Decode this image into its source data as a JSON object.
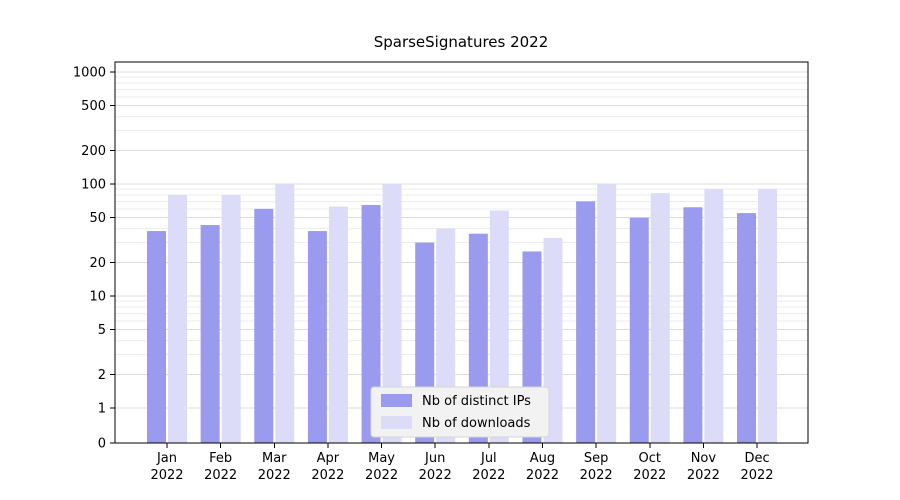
{
  "chart_data": {
    "type": "bar",
    "title": "SparseSignatures 2022",
    "categories": [
      "Jan",
      "Feb",
      "Mar",
      "Apr",
      "May",
      "Jun",
      "Jul",
      "Aug",
      "Sep",
      "Oct",
      "Nov",
      "Dec"
    ],
    "year": "2022",
    "series": [
      {
        "name": "Nb of distinct IPs",
        "color": "#9a9aee",
        "values": [
          38,
          43,
          60,
          38,
          65,
          30,
          36,
          25,
          70,
          50,
          62,
          55
        ]
      },
      {
        "name": "Nb of downloads",
        "color": "#dcdcf8",
        "values": [
          80,
          80,
          100,
          63,
          100,
          40,
          58,
          33,
          100,
          83,
          90,
          90
        ]
      }
    ],
    "yticks": [
      0,
      1,
      2,
      5,
      10,
      20,
      50,
      100,
      200,
      500,
      1000
    ],
    "yscale": "symlog",
    "ylim": [
      0,
      1000
    ],
    "xlabel": "",
    "ylabel": "",
    "grid": true,
    "legend": {
      "position": "lower center",
      "entries": [
        "Nb of distinct IPs",
        "Nb of downloads"
      ]
    }
  }
}
